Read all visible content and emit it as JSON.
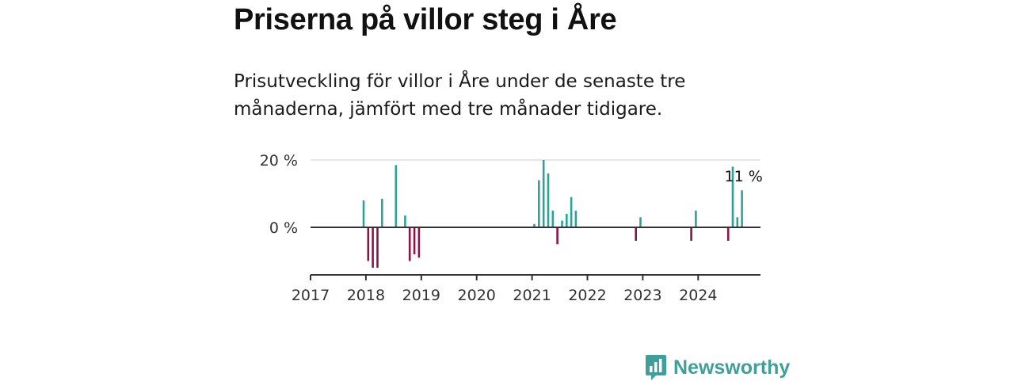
{
  "title": "Priserna på villor steg i Åre",
  "subtitle": "Prisutveckling för villor i Åre under de senaste tre månaderna, jämfört med tre månader tidigare.",
  "brand": {
    "name": "Newsworthy",
    "color": "#3f9f9a"
  },
  "colors": {
    "positive": "#2ba39b",
    "negative": "#8c1545",
    "axis": "#333333",
    "grid": "#dddddd"
  },
  "chart_data": {
    "type": "bar",
    "title": "Priserna på villor steg i Åre",
    "y_unit": "%",
    "ylim": [
      -14,
      20
    ],
    "y_ticks": [
      {
        "value": 0,
        "label": "0 %"
      },
      {
        "value": 20,
        "label": "20 %"
      }
    ],
    "x_ticks": [
      "2017",
      "2018",
      "2019",
      "2020",
      "2021",
      "2022",
      "2023",
      "2024"
    ],
    "grid": "horizontal",
    "series": [
      {
        "x": [
          "2017-12",
          "2018-01",
          "2018-02",
          "2018-03",
          "2018-04",
          "2018-07",
          "2018-09",
          "2018-10",
          "2018-11",
          "2018-12",
          "2021-01",
          "2021-02",
          "2021-03",
          "2021-04",
          "2021-05",
          "2021-06",
          "2021-07",
          "2021-08",
          "2021-09",
          "2021-10",
          "2022-11",
          "2022-12",
          "2023-11",
          "2023-12",
          "2024-07",
          "2024-08",
          "2024-09",
          "2024-10"
        ],
        "values": [
          8,
          -10,
          -12,
          -12,
          8.5,
          18.5,
          3.5,
          -10,
          -8,
          -9,
          1,
          14,
          20,
          16,
          5,
          -5,
          2,
          4,
          9,
          5,
          -4,
          3,
          -4,
          5,
          -4,
          18,
          3,
          11
        ]
      }
    ],
    "annotations": [
      {
        "x": "2024-10",
        "label": "11 %"
      }
    ]
  }
}
